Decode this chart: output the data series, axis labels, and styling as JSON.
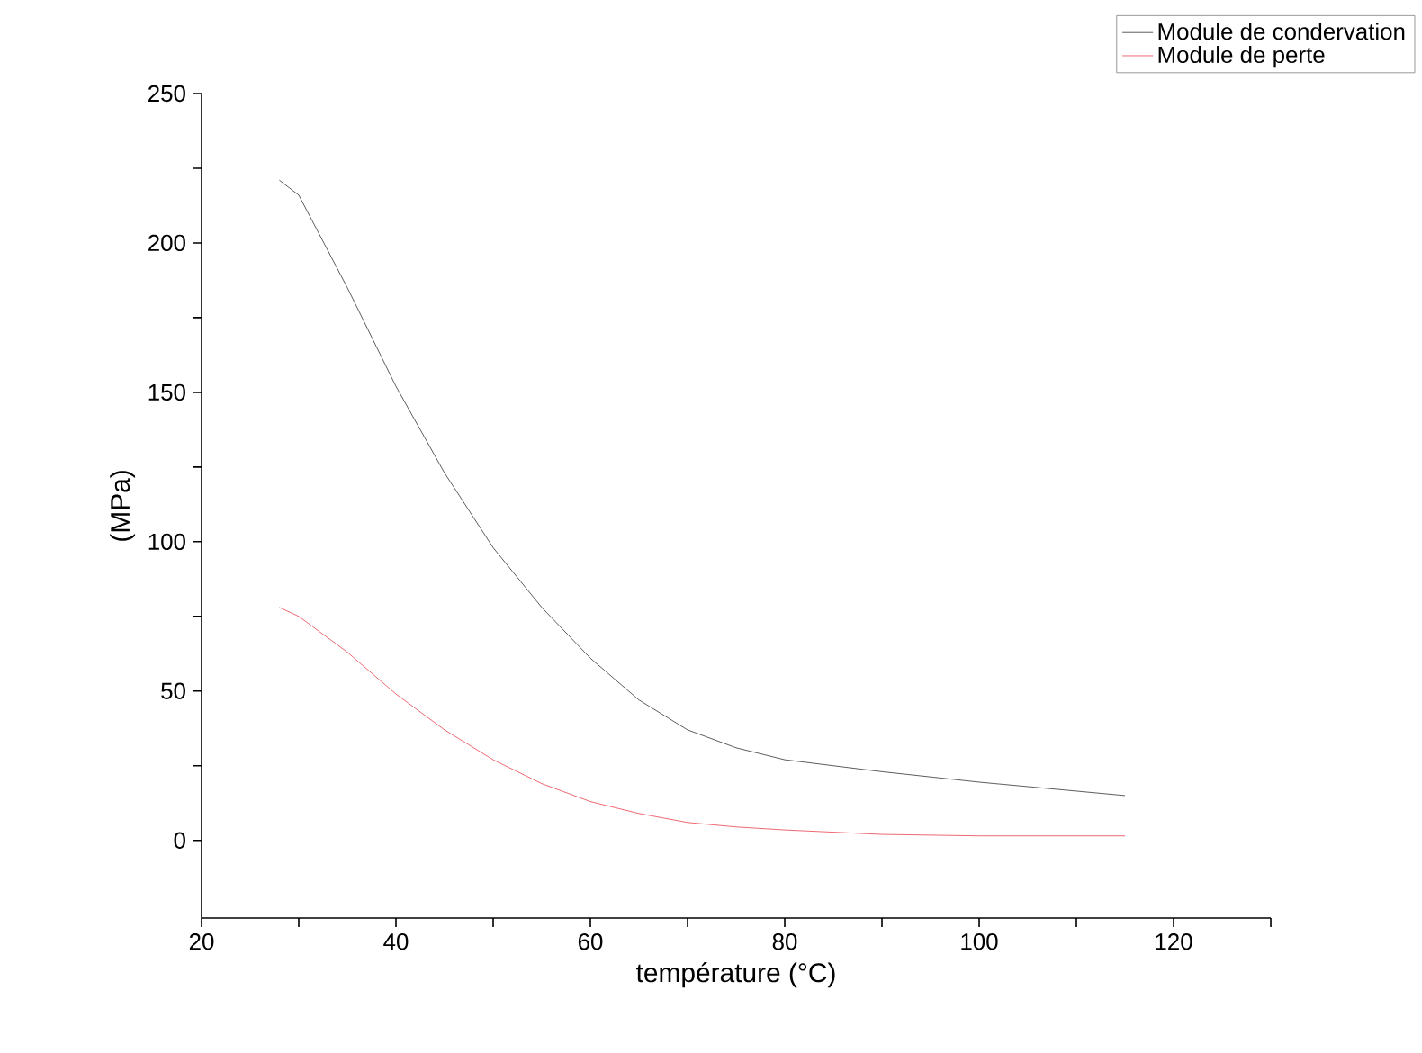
{
  "chart_data": {
    "type": "line",
    "xlabel": "température (°C)",
    "ylabel": "(MPa)",
    "x": [
      28,
      30,
      35,
      40,
      45,
      50,
      55,
      60,
      65,
      70,
      75,
      80,
      90,
      100,
      110,
      115
    ],
    "series": [
      {
        "name": "Module de condervation",
        "color": "#333333",
        "values": [
          221,
          216,
          185,
          152,
          123,
          98,
          78,
          61,
          47,
          37,
          31,
          27,
          23,
          19.5,
          16.5,
          15
        ]
      },
      {
        "name": "Module de perte",
        "color": "#e8434f",
        "values": [
          78,
          75,
          63,
          49,
          37,
          27,
          19,
          13,
          9,
          6,
          4.5,
          3.5,
          2,
          1.5,
          1.5,
          1.5
        ]
      }
    ],
    "xlim": [
      20,
      130
    ],
    "ylim": [
      -26,
      250
    ],
    "xticks": [
      20,
      {
        "value": 30,
        "label": null
      },
      40,
      {
        "value": 50,
        "label": null
      },
      60,
      {
        "value": 70,
        "label": null
      },
      80,
      {
        "value": 90,
        "label": null
      },
      100,
      {
        "value": 110,
        "label": null
      },
      120,
      {
        "value": 130,
        "label": null
      }
    ],
    "yticks": [
      0,
      {
        "value": 25,
        "label": null
      },
      50,
      {
        "value": 75,
        "label": null
      },
      100,
      {
        "value": 125,
        "label": null
      },
      150,
      {
        "value": 175,
        "label": null
      },
      200,
      {
        "value": 225,
        "label": null
      },
      250
    ],
    "grid": false,
    "legend": "top right",
    "marker": "none",
    "line_style": "solid"
  }
}
